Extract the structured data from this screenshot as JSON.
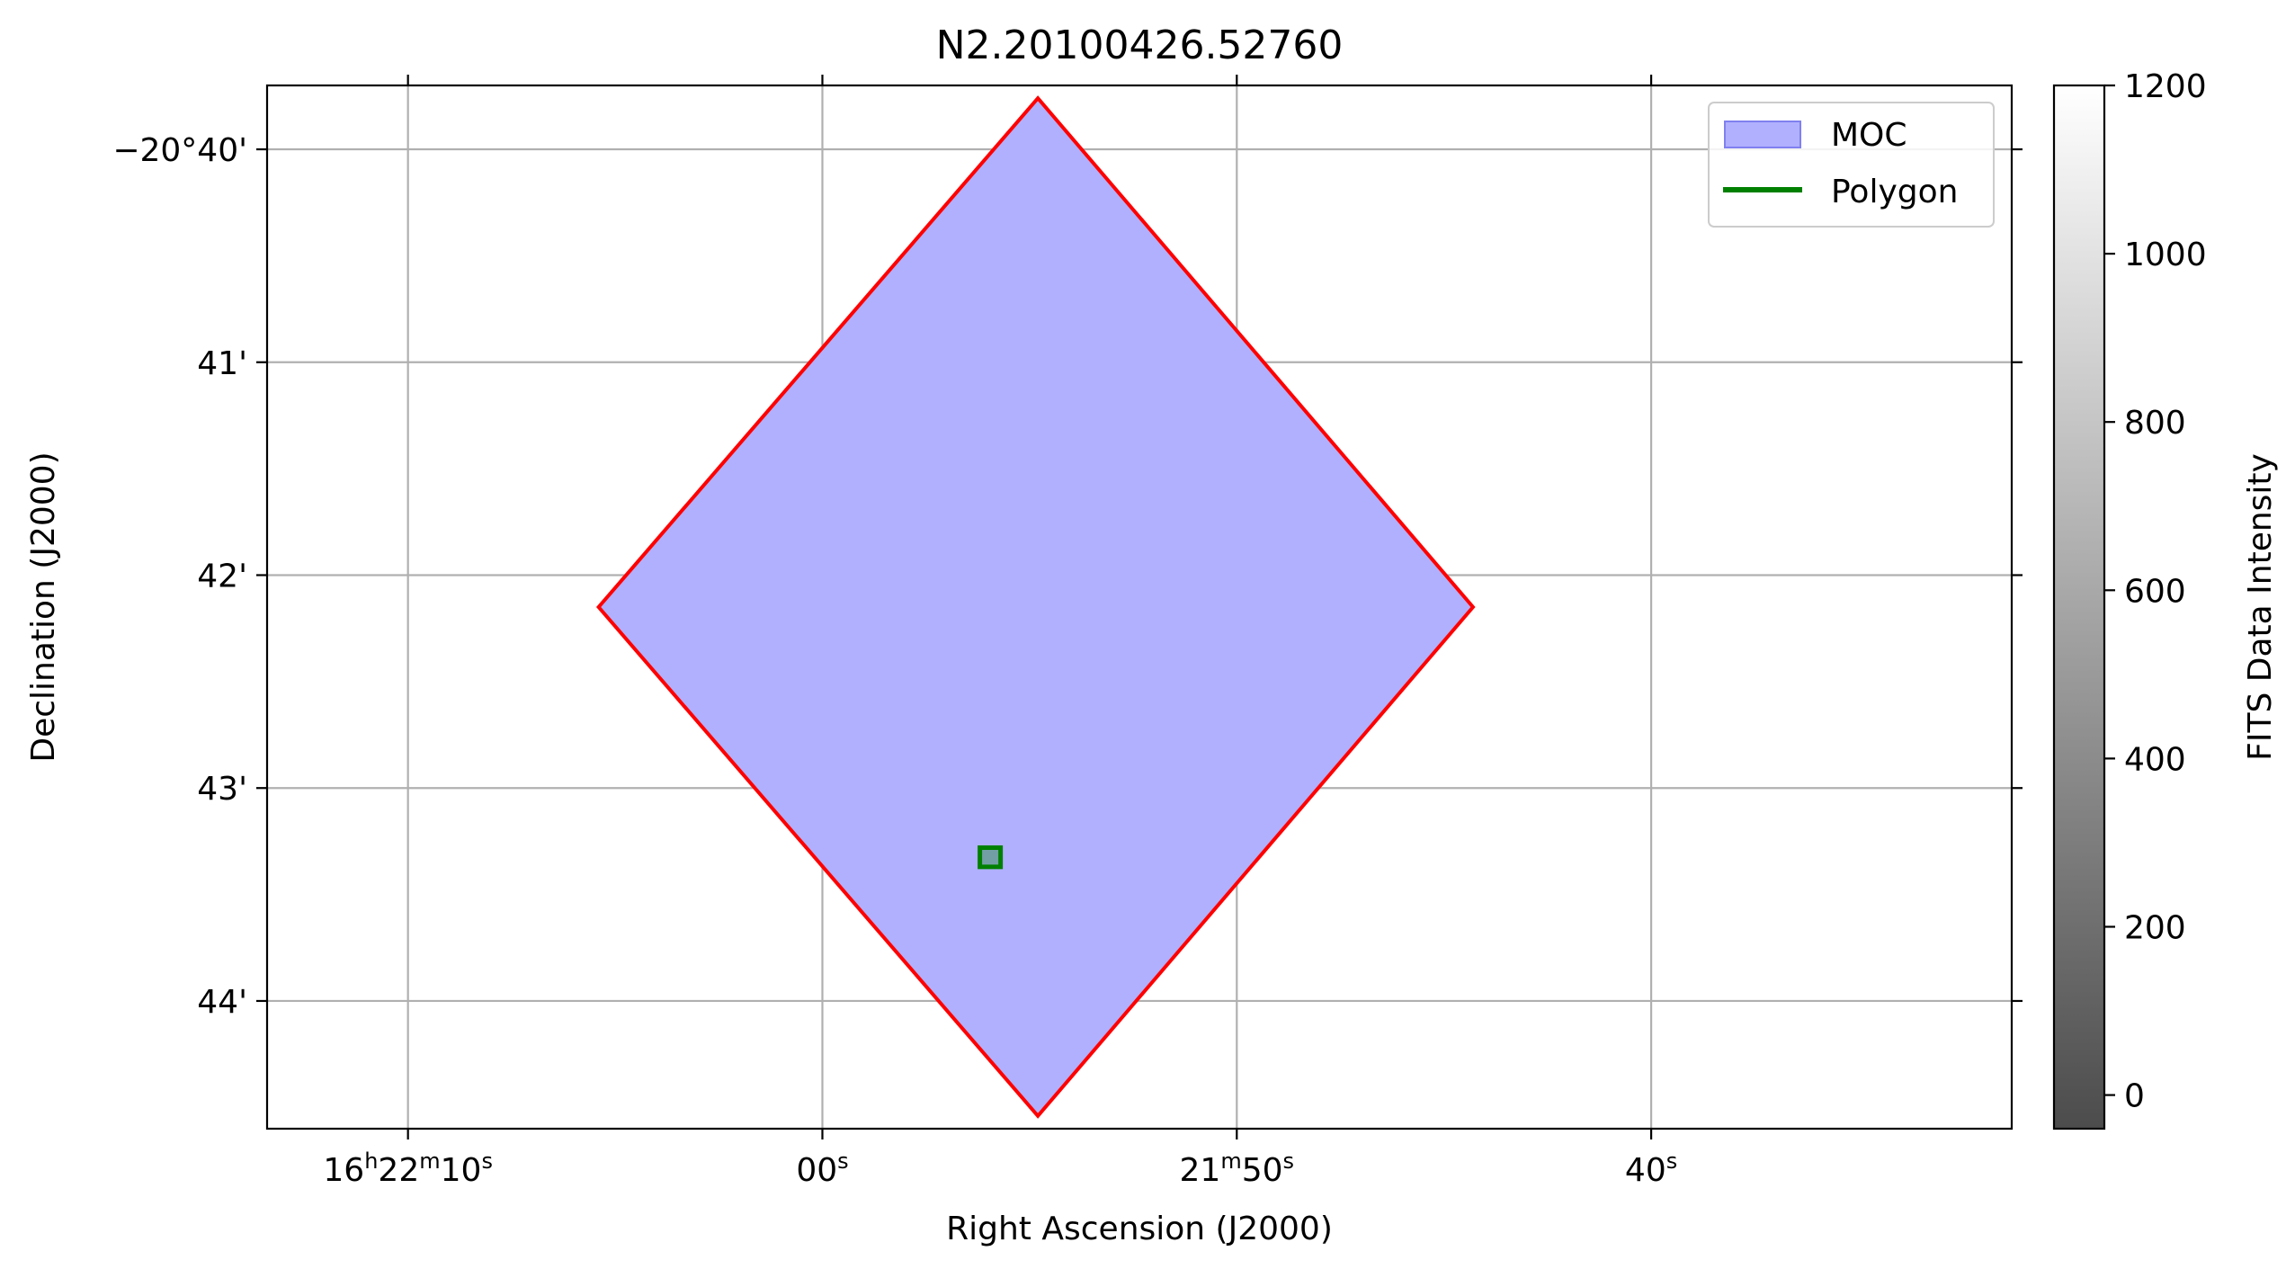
{
  "chart_data": {
    "type": "sky-map",
    "title": "N2.20100426.52760",
    "xlabel": "Right Ascension (J2000)",
    "ylabel": "Declination (J2000)",
    "grid": true,
    "legend_position": "top-right",
    "x_axis": {
      "units": "seconds of RA offset from 16h22m00s",
      "range": [
        13.4,
        -28.7
      ],
      "ticks": [
        {
          "value": 10,
          "label_parts": [
            "16",
            "h",
            "22",
            "m",
            "10",
            "s"
          ]
        },
        {
          "value": 0,
          "label_parts": [
            "00",
            "s"
          ]
        },
        {
          "value": -10,
          "label_parts": [
            "21",
            "m",
            "50",
            "s"
          ]
        },
        {
          "value": -20,
          "label_parts": [
            "40",
            "s"
          ]
        }
      ]
    },
    "y_axis": {
      "units": "arcminutes of Dec (negative = -20°xx')",
      "range": [
        -44.6,
        -39.7
      ],
      "ticks": [
        {
          "value": -40,
          "label": "−20°40'"
        },
        {
          "value": -41,
          "label": "41'"
        },
        {
          "value": -42,
          "label": "42'"
        },
        {
          "value": -43,
          "label": "43'"
        },
        {
          "value": -44,
          "label": "44'"
        }
      ]
    },
    "moc_region": {
      "name": "MOC",
      "fill_color": "#b0b0fe",
      "edge_color": "#ff0000",
      "vertices": [
        {
          "ra_s": -5.2,
          "dec_m": -39.76
        },
        {
          "ra_s": -15.7,
          "dec_m": -42.15
        },
        {
          "ra_s": -5.2,
          "dec_m": -44.54
        },
        {
          "ra_s": 5.4,
          "dec_m": -42.15
        }
      ]
    },
    "polygon": {
      "name": "Polygon",
      "color": "#008000",
      "vertices": [
        {
          "ra_s": -3.8,
          "dec_m": -43.28
        },
        {
          "ra_s": -4.3,
          "dec_m": -43.28
        },
        {
          "ra_s": -4.3,
          "dec_m": -43.37
        },
        {
          "ra_s": -3.8,
          "dec_m": -43.37
        }
      ]
    },
    "colorbar": {
      "label": "FITS Data Intensity",
      "range": [
        -40,
        1200
      ],
      "ticks": [
        0,
        200,
        400,
        600,
        800,
        1000,
        1200
      ],
      "colormap": "gray",
      "alpha": 0.7
    },
    "legend": [
      {
        "label": "MOC"
      },
      {
        "label": "Polygon"
      }
    ]
  }
}
